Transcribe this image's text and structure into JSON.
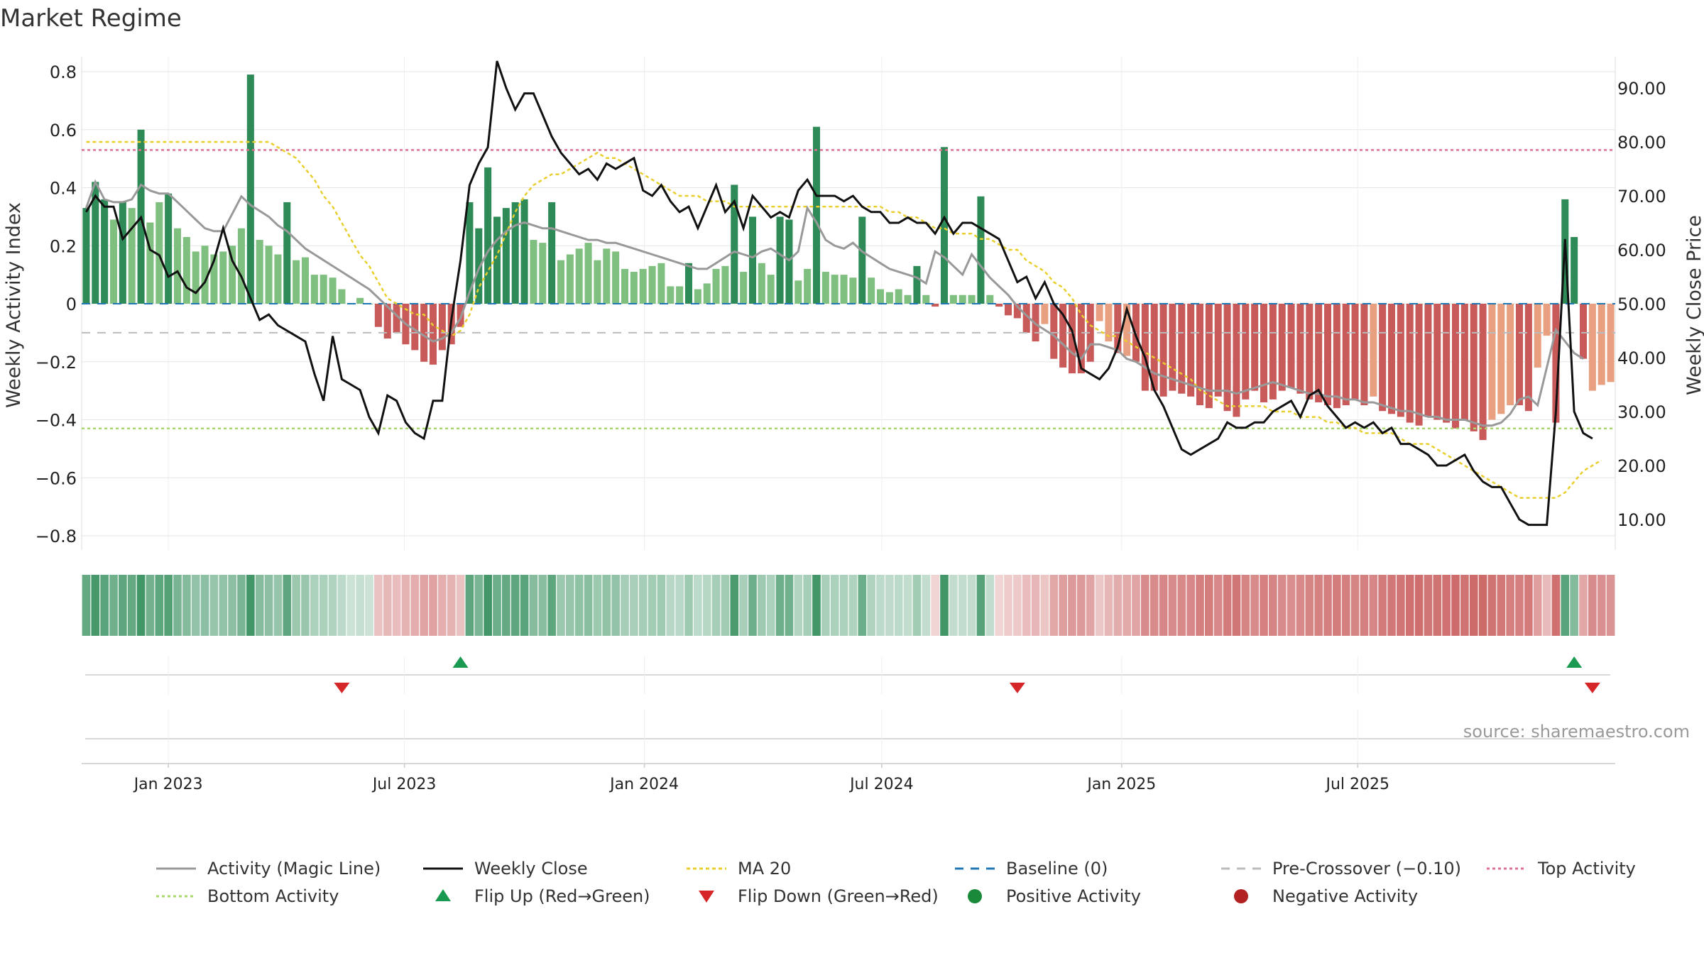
{
  "chart_data": {
    "type": "bar",
    "title": "Market Regime",
    "left_axis": {
      "label": "Weekly Activity Index",
      "ylim": [
        -0.87,
        0.87
      ],
      "ticks": [
        0.8,
        0.6,
        0.4,
        0.2,
        0,
        -0.2,
        -0.4,
        -0.6,
        -0.8
      ],
      "tick_labels": [
        "0.8",
        "0.6",
        "0.4",
        "0.2",
        "0",
        "−0.2",
        "−0.4",
        "−0.6",
        "−0.8"
      ]
    },
    "right_axis": {
      "label": "Weekly Close Price",
      "ticks": [
        90,
        80,
        70,
        60,
        50,
        40,
        30,
        20,
        10
      ],
      "tick_labels": [
        "90.00",
        "80.00",
        "70.00",
        "60.00",
        "50.00",
        "40.00",
        "30.00",
        "20.00",
        "10.00"
      ]
    },
    "x_axis": {
      "ticks": [
        {
          "date": "2023-01-01",
          "label": "Jan 2023"
        },
        {
          "date": "2023-07-01",
          "label": "Jul 2023"
        },
        {
          "date": "2024-01-01",
          "label": "Jan 2024"
        },
        {
          "date": "2024-07-01",
          "label": "Jul 2024"
        },
        {
          "date": "2025-01-01",
          "label": "Jan 2025"
        },
        {
          "date": "2025-07-01",
          "label": "Jul 2025"
        }
      ]
    },
    "grid": true,
    "first_week": "2022-10-30",
    "week_days": 7,
    "activity": [
      0.33,
      0.42,
      0.36,
      0.29,
      0.35,
      0.33,
      0.6,
      0.28,
      0.35,
      0.38,
      0.26,
      0.23,
      0.18,
      0.2,
      0.17,
      0.18,
      0.2,
      0.26,
      0.79,
      0.22,
      0.2,
      0.17,
      0.35,
      0.15,
      0.16,
      0.1,
      0.1,
      0.09,
      0.05,
      0,
      0.02,
      0,
      -0.08,
      -0.12,
      -0.1,
      -0.14,
      -0.16,
      -0.2,
      -0.21,
      -0.16,
      -0.14,
      -0.08,
      0.35,
      0.26,
      0.47,
      0.3,
      0.33,
      0.35,
      0.36,
      0.22,
      0.21,
      0.35,
      0.15,
      0.17,
      0.19,
      0.21,
      0.15,
      0.19,
      0.18,
      0.12,
      0.11,
      0.12,
      0.13,
      0.14,
      0.06,
      0.06,
      0.14,
      0.05,
      0.07,
      0.12,
      0.13,
      0.41,
      0.11,
      0.3,
      0.14,
      0.1,
      0.3,
      0.29,
      0.08,
      0.12,
      0.61,
      0.11,
      0.1,
      0.1,
      0.09,
      0.3,
      0.09,
      0.05,
      0.04,
      0.05,
      0.03,
      0.13,
      0.03,
      -0.01,
      0.54,
      0.03,
      0.03,
      0.03,
      0.37,
      0.03,
      -0.01,
      -0.04,
      -0.05,
      -0.1,
      -0.13,
      -0.07,
      -0.19,
      -0.22,
      -0.24,
      -0.24,
      -0.2,
      -0.06,
      -0.13,
      -0.17,
      -0.18,
      -0.2,
      -0.3,
      -0.3,
      -0.32,
      -0.3,
      -0.31,
      -0.32,
      -0.35,
      -0.36,
      -0.32,
      -0.37,
      -0.39,
      -0.33,
      -0.3,
      -0.34,
      -0.33,
      -0.3,
      -0.29,
      -0.31,
      -0.33,
      -0.34,
      -0.35,
      -0.36,
      -0.35,
      -0.33,
      -0.35,
      -0.32,
      -0.37,
      -0.38,
      -0.39,
      -0.41,
      -0.42,
      -0.39,
      -0.4,
      -0.41,
      -0.43,
      -0.4,
      -0.44,
      -0.47,
      -0.4,
      -0.38,
      -0.35,
      -0.35,
      -0.37,
      -0.22,
      -0.11,
      -0.41,
      0.36,
      0.23,
      -0.19,
      -0.3,
      -0.28,
      -0.27
    ],
    "magic_line": [
      0.33,
      0.42,
      0.36,
      0.35,
      0.35,
      0.36,
      0.41,
      0.39,
      0.38,
      0.38,
      0.35,
      0.32,
      0.29,
      0.26,
      0.25,
      0.25,
      0.31,
      0.37,
      0.34,
      0.32,
      0.3,
      0.27,
      0.25,
      0.22,
      0.19,
      0.17,
      0.15,
      0.13,
      0.11,
      0.09,
      0.07,
      0.05,
      0.02,
      -0.01,
      -0.04,
      -0.07,
      -0.09,
      -0.11,
      -0.13,
      -0.12,
      -0.1,
      -0.05,
      0.04,
      0.12,
      0.18,
      0.22,
      0.25,
      0.27,
      0.28,
      0.27,
      0.26,
      0.26,
      0.25,
      0.24,
      0.23,
      0.22,
      0.22,
      0.21,
      0.21,
      0.2,
      0.19,
      0.18,
      0.17,
      0.16,
      0.15,
      0.14,
      0.13,
      0.12,
      0.12,
      0.14,
      0.16,
      0.18,
      0.17,
      0.16,
      0.18,
      0.19,
      0.17,
      0.15,
      0.18,
      0.33,
      0.28,
      0.22,
      0.2,
      0.19,
      0.21,
      0.18,
      0.16,
      0.14,
      0.12,
      0.11,
      0.1,
      0.09,
      0.07,
      0.18,
      0.16,
      0.13,
      0.1,
      0.17,
      0.13,
      0.09,
      0.06,
      0.03,
      -0.01,
      -0.04,
      -0.07,
      -0.09,
      -0.11,
      -0.14,
      -0.17,
      -0.19,
      -0.14,
      -0.14,
      -0.15,
      -0.16,
      -0.19,
      -0.2,
      -0.22,
      -0.24,
      -0.25,
      -0.26,
      -0.27,
      -0.28,
      -0.29,
      -0.3,
      -0.3,
      -0.3,
      -0.31,
      -0.3,
      -0.29,
      -0.28,
      -0.27,
      -0.28,
      -0.29,
      -0.3,
      -0.31,
      -0.31,
      -0.32,
      -0.32,
      -0.33,
      -0.33,
      -0.34,
      -0.34,
      -0.35,
      -0.36,
      -0.37,
      -0.37,
      -0.38,
      -0.39,
      -0.39,
      -0.4,
      -0.4,
      -0.4,
      -0.41,
      -0.42,
      -0.42,
      -0.41,
      -0.38,
      -0.33,
      -0.32,
      -0.35,
      -0.22,
      -0.09,
      -0.13,
      -0.17,
      -0.19
    ],
    "weekly_close": [
      67,
      70,
      68,
      68,
      62,
      64,
      66,
      60,
      59,
      55,
      56,
      53,
      52,
      54,
      58,
      64,
      58,
      55,
      51,
      47,
      48,
      46,
      45,
      44,
      43,
      37,
      32,
      44,
      36,
      35,
      34,
      29,
      26,
      33,
      32,
      28,
      26,
      25,
      32,
      32,
      47,
      58,
      72,
      76,
      79,
      95,
      90,
      86,
      89,
      89,
      85,
      81,
      78,
      76,
      74,
      75,
      73,
      76,
      75,
      76,
      77,
      71,
      70,
      72,
      69,
      67,
      68,
      64,
      68,
      72,
      67,
      69,
      64,
      70,
      68,
      66,
      67,
      66,
      71,
      73,
      70,
      70,
      70,
      69,
      70,
      68,
      67,
      67,
      65,
      65,
      66,
      65,
      65,
      63,
      66,
      63,
      65,
      65,
      64,
      63,
      62,
      58,
      54,
      55,
      51,
      54,
      50,
      48,
      45,
      38,
      37,
      36,
      38,
      42,
      49,
      44,
      40,
      34,
      31,
      27,
      23,
      22,
      23,
      24,
      25,
      28,
      27,
      27,
      28,
      28,
      30,
      31,
      32,
      29,
      33,
      34,
      31,
      29,
      27,
      28,
      27,
      28,
      26,
      27,
      24,
      24,
      23,
      22,
      20,
      20,
      21,
      22,
      19,
      17,
      16,
      16,
      13,
      10,
      9,
      9,
      9,
      30,
      62,
      30,
      26,
      25
    ],
    "ma20": [
      80,
      80,
      80,
      80,
      80,
      80,
      80,
      80,
      80,
      80,
      80,
      80,
      80,
      80,
      80,
      80,
      80,
      80,
      80,
      80,
      80,
      79,
      78,
      77,
      75,
      73,
      70,
      68,
      65,
      62,
      59,
      57,
      54,
      51,
      50,
      49,
      48,
      48,
      46,
      45,
      44,
      45,
      48,
      53,
      56,
      59,
      63,
      67,
      70,
      72,
      73,
      74,
      74,
      75,
      76,
      77,
      78,
      77,
      77,
      76,
      75,
      74,
      73,
      72,
      71,
      70,
      70,
      70,
      69,
      69,
      69,
      68,
      68,
      68,
      68,
      68,
      68,
      68,
      68,
      68,
      68,
      68,
      68,
      68,
      68,
      68,
      68,
      68,
      67,
      67,
      66,
      66,
      65,
      64,
      64,
      63,
      63,
      63,
      62,
      62,
      61,
      60,
      60,
      58,
      57,
      56,
      54,
      53,
      51,
      48,
      46,
      45,
      44,
      44,
      43,
      42,
      41,
      40,
      39,
      38,
      37,
      36,
      34,
      33,
      32,
      31,
      31,
      31,
      31,
      31,
      30,
      30,
      30,
      29,
      29,
      29,
      28,
      28,
      27,
      27,
      26,
      26,
      26,
      26,
      25,
      24,
      24,
      24,
      23,
      22,
      21,
      20,
      19,
      18,
      17,
      16,
      15,
      14,
      14,
      14,
      14,
      14,
      15,
      17,
      19,
      20,
      21
    ],
    "baseline": 0,
    "pre_crossover": -0.1,
    "top_activity": 0.53,
    "bottom_activity": -0.43,
    "flip_up_weeks": [
      41,
      163
    ],
    "flip_down_weeks": [
      28,
      102,
      165
    ],
    "colors": {
      "positive_strong": "#2e8b57",
      "positive_weak": "#7fbf7f",
      "negative_strong": "#c85a5a",
      "negative_weak": "#e8a080",
      "magic_line": "#999999",
      "weekly_close": "#111111",
      "ma20": "#e8cf2e",
      "baseline": "#1f77b4",
      "pre_crossover": "#bbbbbb",
      "top_activity": "#e07090",
      "bottom_activity": "#a8d870",
      "flip_up": "#1a9a50",
      "flip_down": "#d62728",
      "positive_dot": "#1a8a3a",
      "negative_dot": "#b22222"
    },
    "legend": {
      "placement": "bottom",
      "items": [
        {
          "label": "Activity (Magic Line)",
          "kind": "line",
          "color": "#999999",
          "dash": ""
        },
        {
          "label": "Weekly Close",
          "kind": "line",
          "color": "#111111",
          "dash": ""
        },
        {
          "label": "MA 20",
          "kind": "line",
          "color": "#e8cf2e",
          "dash": "5,4"
        },
        {
          "label": "Baseline (0)",
          "kind": "line",
          "color": "#1f77b4",
          "dash": "12,10"
        },
        {
          "label": "Pre-Crossover (−0.10)",
          "kind": "line",
          "color": "#bbbbbb",
          "dash": "12,10"
        },
        {
          "label": "Top Activity",
          "kind": "line",
          "color": "#e07090",
          "dash": "4,4"
        },
        {
          "label": "Bottom Activity",
          "kind": "line",
          "color": "#a8d870",
          "dash": "4,4"
        },
        {
          "label": "Flip Up (Red→Green)",
          "kind": "tri-up",
          "color": "#1a9a50"
        },
        {
          "label": "Flip Down (Green→Red)",
          "kind": "tri-down",
          "color": "#d62728"
        },
        {
          "label": "Positive Activity",
          "kind": "dot",
          "color": "#1a8a3a"
        },
        {
          "label": "Negative Activity",
          "kind": "dot",
          "color": "#b22222"
        }
      ]
    },
    "source": "source: sharemaestro.com"
  }
}
